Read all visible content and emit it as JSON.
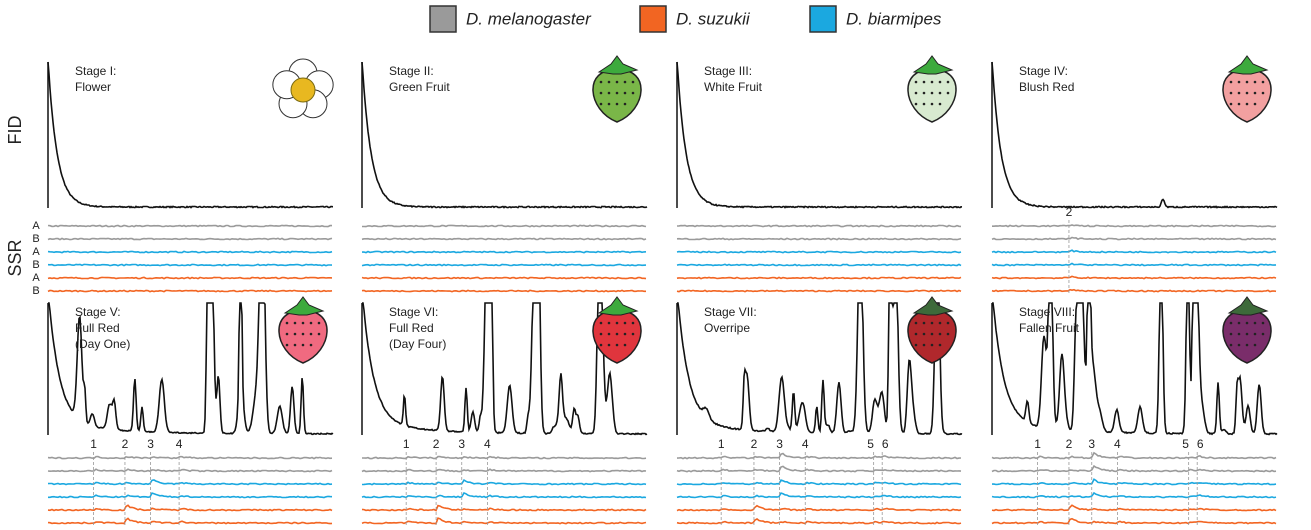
{
  "legend": [
    {
      "label": "D. melanogaster",
      "color": "#9a9a9a"
    },
    {
      "label": "D. suzukii",
      "color": "#f26522"
    },
    {
      "label": "D. biarmipes",
      "color": "#1ba8e0"
    }
  ],
  "axis_labels": {
    "fid": "FID",
    "ssr": "SSR"
  },
  "ssr_row_labels": [
    "A",
    "B",
    "A",
    "B",
    "A",
    "B"
  ],
  "panels": [
    {
      "title": [
        "Stage I:",
        "Flower"
      ],
      "peaks": []
    },
    {
      "title": [
        "Stage II:",
        "Green Fruit"
      ],
      "peaks": []
    },
    {
      "title": [
        "Stage III:",
        "White Fruit"
      ],
      "peaks": []
    },
    {
      "title": [
        "Stage IV:",
        "Blush Red"
      ],
      "peaks": [
        "2"
      ]
    },
    {
      "title": [
        "Stage V:",
        "Full Red",
        "(Day One)"
      ],
      "peaks": [
        "1",
        "2",
        "3",
        "4"
      ]
    },
    {
      "title": [
        "Stage VI:",
        "Full Red",
        "(Day Four)"
      ],
      "peaks": [
        "1",
        "2",
        "3",
        "4"
      ]
    },
    {
      "title": [
        "Stage VII:",
        "Overripe"
      ],
      "peaks": [
        "1",
        "2",
        "3",
        "4",
        "5",
        "6"
      ]
    },
    {
      "title": [
        "Stage VIII:",
        "Fallen Fruit"
      ],
      "peaks": [
        "1",
        "2",
        "3",
        "4",
        "5",
        "6"
      ]
    }
  ]
}
